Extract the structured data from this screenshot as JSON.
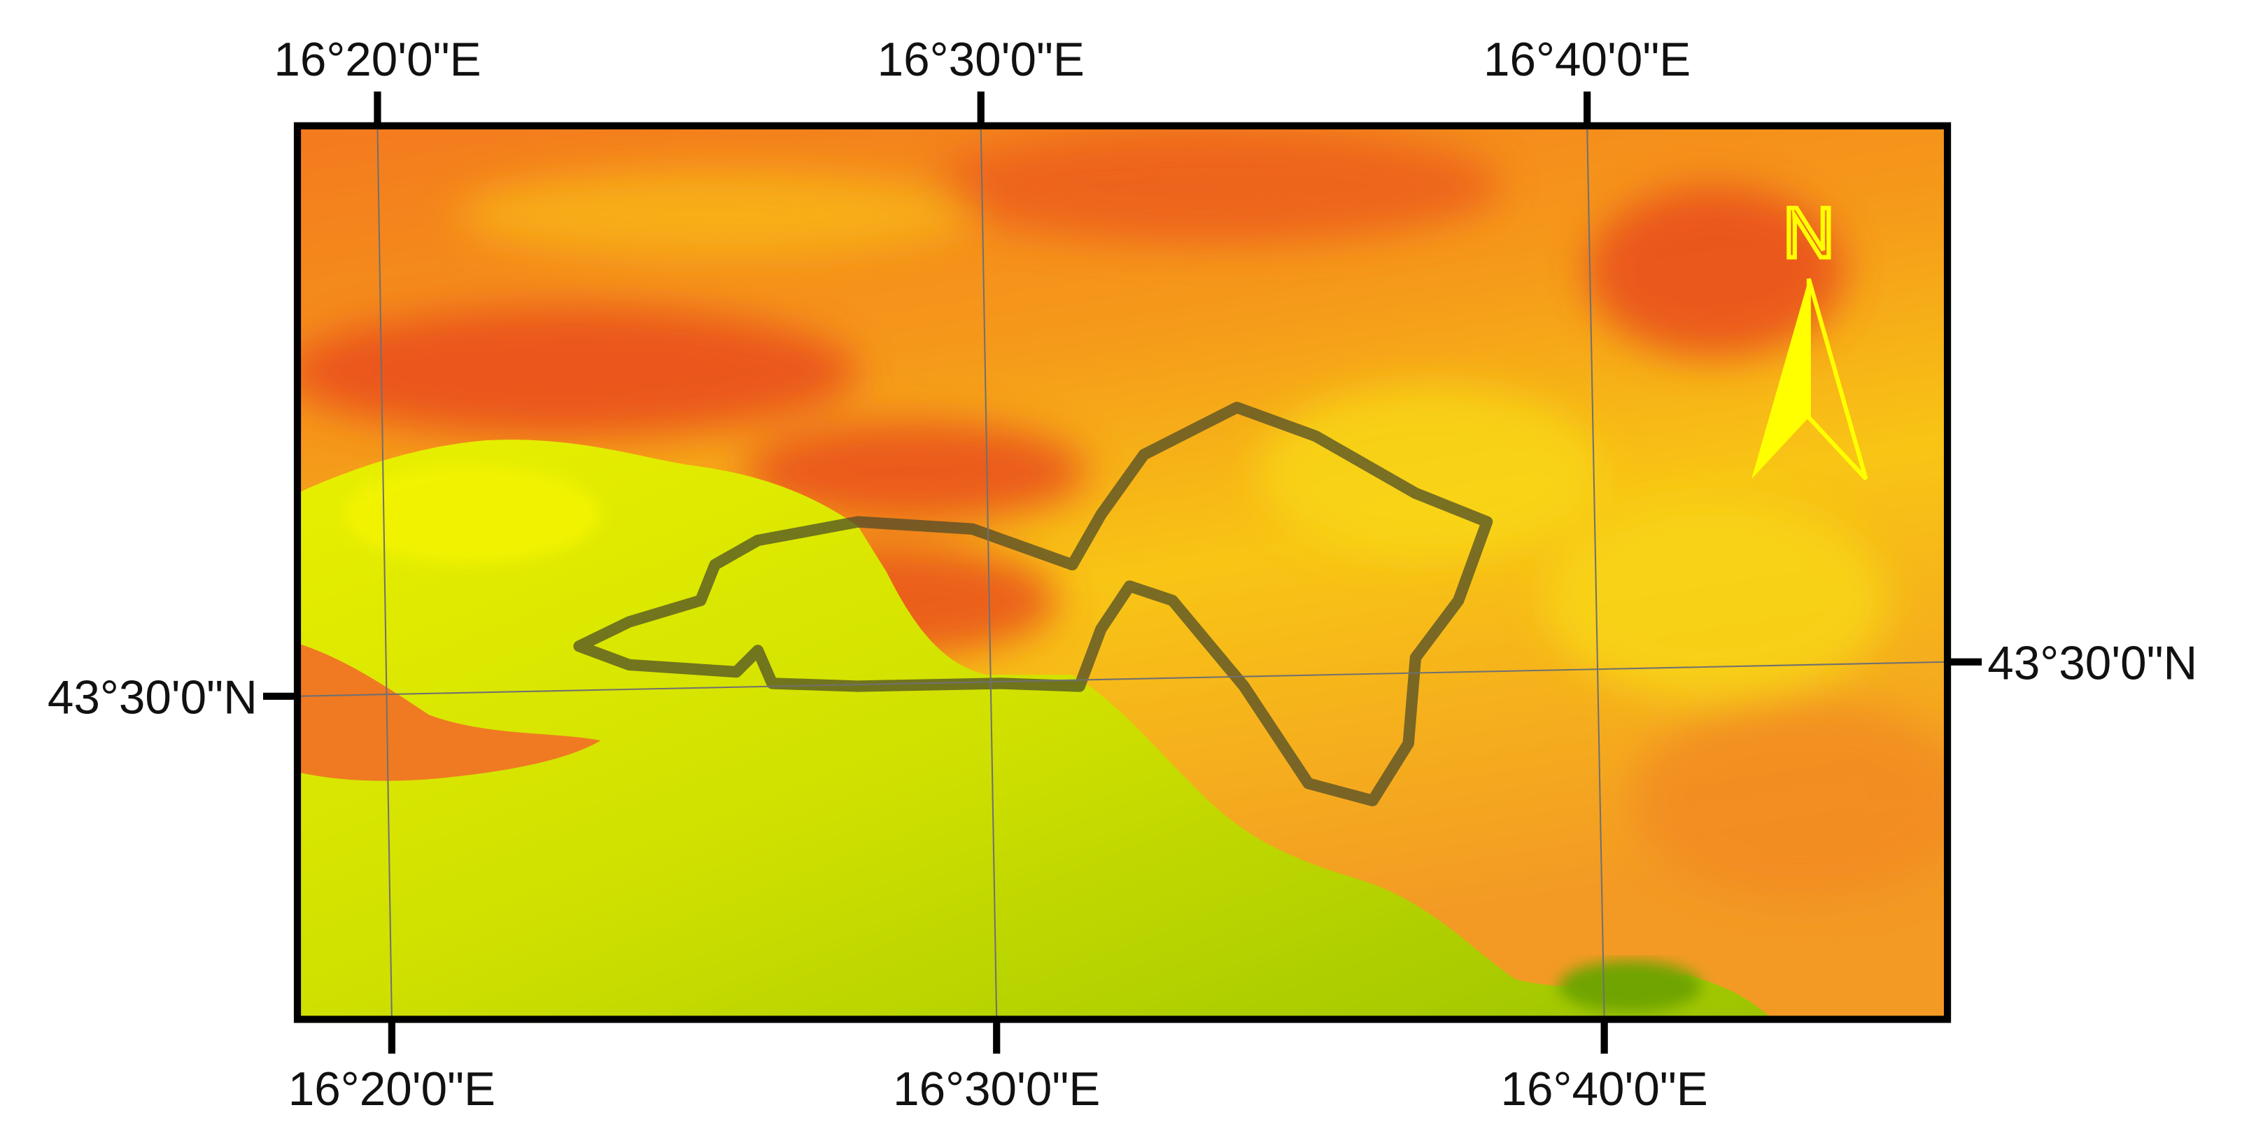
{
  "graticule": {
    "top": [
      "16°20'0\"E",
      "16°30'0\"E",
      "16°40'0\"E"
    ],
    "bottom": [
      "16°20'0\"E",
      "16°30'0\"E",
      "16°40'0\"E"
    ],
    "left": "43°30'0\"N",
    "right": "43°30'0\"N"
  },
  "north_arrow": {
    "label": "N"
  }
}
